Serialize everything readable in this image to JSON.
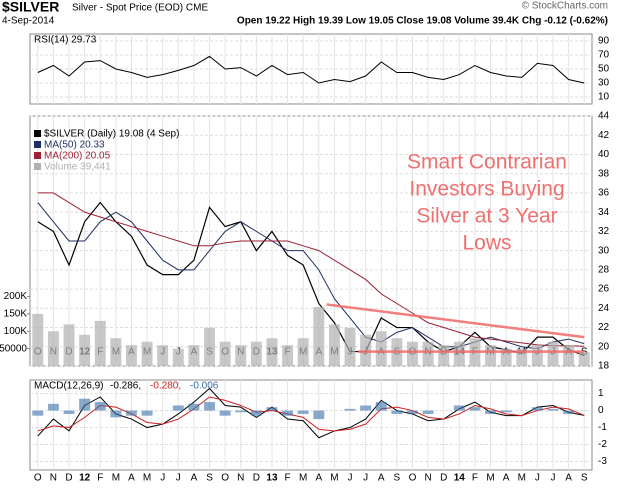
{
  "header": {
    "ticker": "$SILVER",
    "name": "Silver - Spot Price (EOD) CME",
    "date": "4-Sep-2014",
    "quote": "Open 19.22 High 19.39 Low 19.05 Close 19.08 Volume 39.4K Chg -0.12 (-0.62%)",
    "credit": "© StockCharts.com"
  },
  "annotation": [
    "Smart Contrarian",
    "Investors Buying",
    "Silver at 3 Year",
    "Lows"
  ],
  "chart_data": [
    {
      "type": "line",
      "title": "RSI(14) 29.73",
      "ylim": [
        0,
        100
      ],
      "yticks": [
        10,
        30,
        50,
        70,
        90
      ],
      "series": [
        {
          "color": "#000000",
          "values": [
            45,
            55,
            40,
            60,
            62,
            50,
            45,
            38,
            42,
            48,
            55,
            68,
            50,
            52,
            40,
            55,
            42,
            45,
            30,
            35,
            32,
            40,
            60,
            45,
            45,
            38,
            35,
            42,
            55,
            45,
            40,
            38,
            58,
            55,
            35,
            30
          ]
        }
      ]
    },
    {
      "type": "line",
      "categories": [
        "O",
        "N",
        "D",
        "12",
        "F",
        "M",
        "A",
        "M",
        "J",
        "J",
        "A",
        "S",
        "O",
        "N",
        "D",
        "13",
        "F",
        "M",
        "A",
        "M",
        "J",
        "J",
        "A",
        "S",
        "O",
        "N",
        "D",
        "14",
        "F",
        "M",
        "A",
        "M",
        "J",
        "J",
        "A",
        "S"
      ],
      "ylim": [
        18,
        44
      ],
      "yticks": [
        18,
        20,
        22,
        24,
        26,
        28,
        30,
        32,
        34,
        36,
        38,
        40,
        42,
        44
      ],
      "volume_lim": [
        0,
        720000
      ],
      "volume_ticks": [
        {
          "value": 50000,
          "label": "50000"
        },
        {
          "value": 100000,
          "label": "100K"
        },
        {
          "value": 150000,
          "label": "150K"
        },
        {
          "value": 200000,
          "label": "200K"
        }
      ],
      "series": [
        {
          "name": "$SILVER (Daily) 19.08 (4 Sep)",
          "color": "#000000",
          "values": [
            33,
            32,
            28.5,
            33,
            35,
            33,
            31.5,
            28.5,
            27.5,
            27.5,
            29,
            34.5,
            32.5,
            33,
            30,
            32,
            29.5,
            28.5,
            24.5,
            22.5,
            19.5,
            19.5,
            23,
            22,
            22,
            20.5,
            19.5,
            20,
            21.5,
            20,
            19.7,
            19.3,
            21,
            21,
            19.7,
            19.08
          ]
        },
        {
          "name": "MA(50) 20.33",
          "color": "#1f2f5f",
          "values": [
            35,
            33,
            31,
            31,
            33,
            34,
            33,
            31,
            29,
            28,
            28,
            30,
            32,
            33,
            32,
            31,
            30,
            30,
            28,
            25,
            23,
            21,
            20.5,
            21.5,
            22,
            21,
            20,
            20,
            20.5,
            21,
            20.5,
            20,
            19.8,
            20.5,
            20.8,
            20.33
          ]
        },
        {
          "name": "MA(200) 20.05",
          "color": "#9b2335",
          "values": [
            36,
            36,
            35,
            34,
            33.5,
            33,
            32.5,
            32,
            31.5,
            31,
            30.5,
            30.5,
            30.8,
            31,
            31,
            31,
            31,
            30.5,
            30,
            29,
            28,
            27,
            25.5,
            24.5,
            23.5,
            22.5,
            22,
            21.5,
            21,
            20.8,
            20.6,
            20.4,
            20.2,
            20.1,
            20.1,
            20.05
          ]
        },
        {
          "name": "Volume 39,441",
          "color": "#b0b0b0",
          "type": "volume",
          "values": [
            150000,
            100000,
            120000,
            90000,
            130000,
            80000,
            60000,
            70000,
            60000,
            50000,
            60000,
            110000,
            70000,
            60000,
            70000,
            80000,
            60000,
            80000,
            170000,
            120000,
            110000,
            90000,
            100000,
            80000,
            70000,
            70000,
            60000,
            70000,
            80000,
            60000,
            50000,
            50000,
            60000,
            70000,
            60000,
            40000
          ]
        }
      ],
      "trendlines": [
        {
          "color": "#f06868",
          "from": 19,
          "to": 35.5,
          "values": [
            24.4,
            21.0
          ]
        },
        {
          "color": "#f06868",
          "from": 21,
          "to": 35.5,
          "values": [
            19.5,
            19.5
          ]
        }
      ]
    },
    {
      "type": "line",
      "title": "MACD(12,26,9)",
      "categories": [
        "O",
        "N",
        "D",
        "12",
        "F",
        "M",
        "A",
        "M",
        "J",
        "J",
        "A",
        "S",
        "O",
        "N",
        "D",
        "13",
        "F",
        "M",
        "A",
        "M",
        "J",
        "J",
        "A",
        "S",
        "O",
        "N",
        "D",
        "14",
        "F",
        "M",
        "A",
        "M",
        "J",
        "J",
        "A",
        "S"
      ],
      "ylim": [
        -3.5,
        1.8
      ],
      "yticks": [
        -3,
        -2,
        -1,
        0,
        1
      ],
      "series": [
        {
          "name": "-0.286,",
          "color": "#000000",
          "values": [
            -1.5,
            -0.5,
            -1.2,
            0.3,
            0.8,
            -0.2,
            -0.5,
            -1.0,
            -0.8,
            -0.2,
            0.5,
            1.3,
            0.3,
            0.2,
            -0.4,
            0.2,
            -0.5,
            -0.6,
            -1.6,
            -1.2,
            -1.0,
            -0.5,
            0.6,
            0,
            -0.2,
            -0.6,
            -0.5,
            0.1,
            0.5,
            -0.1,
            -0.3,
            -0.3,
            0.2,
            0.3,
            -0.1,
            -0.286
          ]
        },
        {
          "name": "-0.280,",
          "color": "#d02020",
          "values": [
            -1.2,
            -0.9,
            -1.0,
            -0.4,
            0.3,
            0.2,
            -0.2,
            -0.7,
            -0.8,
            -0.5,
            0.1,
            0.8,
            0.6,
            0.3,
            -0.1,
            0,
            -0.2,
            -0.4,
            -1.1,
            -1.2,
            -1.1,
            -0.8,
            0.1,
            0.2,
            0,
            -0.4,
            -0.5,
            -0.2,
            0.3,
            0.1,
            -0.2,
            -0.3,
            0,
            0.2,
            0.1,
            -0.28
          ]
        },
        {
          "name": "-0.006",
          "color": "#3a6fa8",
          "type": "hist",
          "values": [
            -0.3,
            0.4,
            -0.2,
            0.7,
            0.5,
            -0.4,
            -0.3,
            -0.3,
            0,
            0.3,
            0.4,
            0.5,
            -0.3,
            -0.1,
            -0.3,
            0.2,
            -0.3,
            -0.2,
            -0.5,
            0,
            0.1,
            0.3,
            0.5,
            -0.2,
            -0.2,
            -0.2,
            0,
            0.3,
            0.2,
            -0.2,
            -0.1,
            0,
            0.2,
            0.1,
            -0.2,
            -0.006
          ]
        }
      ]
    }
  ]
}
